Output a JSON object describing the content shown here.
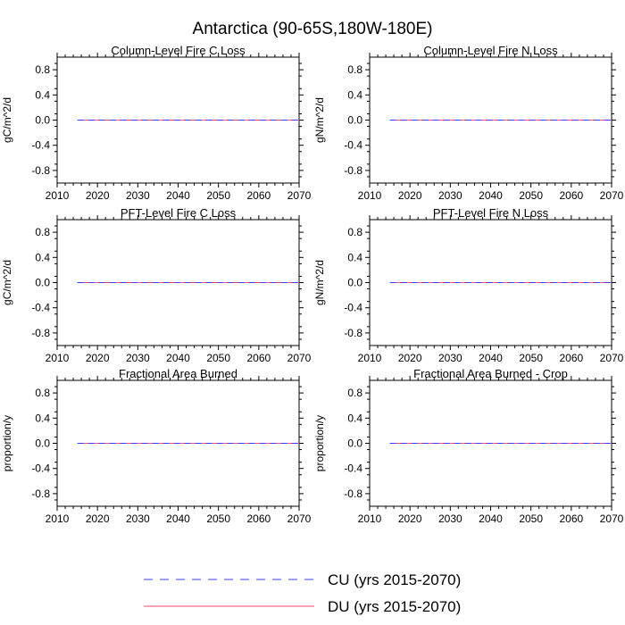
{
  "figure": {
    "title": "Antarctica (90-65S,180W-180E)"
  },
  "legend": {
    "entries": [
      {
        "label": "CU (yrs 2015-2070)",
        "color": "#3a3aff",
        "style": "dashed"
      },
      {
        "label": "DU (yrs 2015-2070)",
        "color": "#ff4a6a",
        "style": "solid"
      }
    ]
  },
  "chart_data": [
    {
      "type": "line",
      "title": "Column-Level Fire C Loss",
      "ylabel": "gC/m^2/d",
      "xlim": [
        2010,
        2070
      ],
      "ylim": [
        -1.0,
        1.0
      ],
      "xticks": [
        2010,
        2020,
        2030,
        2040,
        2050,
        2060,
        2070
      ],
      "yticks": [
        -0.8,
        -0.4,
        0.0,
        0.4,
        0.8
      ],
      "ytick_labels": [
        "-0.8",
        "-0.4",
        "0.0",
        "0.4",
        "0.8"
      ],
      "series": [
        {
          "name": "CU (yrs 2015-2070)",
          "x": [
            2015,
            2070
          ],
          "y": [
            0.0,
            0.0
          ]
        },
        {
          "name": "DU (yrs 2015-2070)",
          "x": [
            2015,
            2070
          ],
          "y": [
            0.0,
            0.0
          ]
        }
      ]
    },
    {
      "type": "line",
      "title": "Column-Level Fire N Loss",
      "ylabel": "gN/m^2/d",
      "xlim": [
        2010,
        2070
      ],
      "ylim": [
        -1.0,
        1.0
      ],
      "xticks": [
        2010,
        2020,
        2030,
        2040,
        2050,
        2060,
        2070
      ],
      "yticks": [
        -0.8,
        -0.4,
        0.0,
        0.4,
        0.8
      ],
      "ytick_labels": [
        "-0.8",
        "-0.4",
        "0.0",
        "0.4",
        "0.8"
      ],
      "series": [
        {
          "name": "CU (yrs 2015-2070)",
          "x": [
            2015,
            2070
          ],
          "y": [
            0.0,
            0.0
          ]
        },
        {
          "name": "DU (yrs 2015-2070)",
          "x": [
            2015,
            2070
          ],
          "y": [
            0.0,
            0.0
          ]
        }
      ]
    },
    {
      "type": "line",
      "title": "PFT-Level Fire C Loss",
      "ylabel": "gC/m^2/d",
      "xlim": [
        2010,
        2070
      ],
      "ylim": [
        -1.0,
        1.0
      ],
      "xticks": [
        2010,
        2020,
        2030,
        2040,
        2050,
        2060,
        2070
      ],
      "yticks": [
        -0.8,
        -0.4,
        0.0,
        0.4,
        0.8
      ],
      "ytick_labels": [
        "-0.8",
        "-0.4",
        "0.0",
        "0.4",
        "0.8"
      ],
      "series": [
        {
          "name": "CU (yrs 2015-2070)",
          "x": [
            2015,
            2070
          ],
          "y": [
            0.0,
            0.0
          ]
        },
        {
          "name": "DU (yrs 2015-2070)",
          "x": [
            2015,
            2070
          ],
          "y": [
            0.0,
            0.0
          ]
        }
      ]
    },
    {
      "type": "line",
      "title": "PFT-Level Fire N Loss",
      "ylabel": "gN/m^2/d",
      "xlim": [
        2010,
        2070
      ],
      "ylim": [
        -1.0,
        1.0
      ],
      "xticks": [
        2010,
        2020,
        2030,
        2040,
        2050,
        2060,
        2070
      ],
      "yticks": [
        -0.8,
        -0.4,
        0.0,
        0.4,
        0.8
      ],
      "ytick_labels": [
        "-0.8",
        "-0.4",
        "0.0",
        "0.4",
        "0.8"
      ],
      "series": [
        {
          "name": "CU (yrs 2015-2070)",
          "x": [
            2015,
            2070
          ],
          "y": [
            0.0,
            0.0
          ]
        },
        {
          "name": "DU (yrs 2015-2070)",
          "x": [
            2015,
            2070
          ],
          "y": [
            0.0,
            0.0
          ]
        }
      ]
    },
    {
      "type": "line",
      "title": "Fractional Area Burned",
      "ylabel": "proportion/y",
      "xlim": [
        2010,
        2070
      ],
      "ylim": [
        -1.0,
        1.0
      ],
      "xticks": [
        2010,
        2020,
        2030,
        2040,
        2050,
        2060,
        2070
      ],
      "yticks": [
        -0.8,
        -0.4,
        0.0,
        0.4,
        0.8
      ],
      "ytick_labels": [
        "-0.8",
        "-0.4",
        "0.0",
        "0.4",
        "0.8"
      ],
      "series": [
        {
          "name": "CU (yrs 2015-2070)",
          "x": [
            2015,
            2070
          ],
          "y": [
            0.0,
            0.0
          ]
        },
        {
          "name": "DU (yrs 2015-2070)",
          "x": [
            2015,
            2070
          ],
          "y": [
            0.0,
            0.0
          ]
        }
      ]
    },
    {
      "type": "line",
      "title": "Fractional Area Burned - Crop",
      "ylabel": "proportion/y",
      "xlim": [
        2010,
        2070
      ],
      "ylim": [
        -1.0,
        1.0
      ],
      "xticks": [
        2010,
        2020,
        2030,
        2040,
        2050,
        2060,
        2070
      ],
      "yticks": [
        -0.8,
        -0.4,
        0.0,
        0.4,
        0.8
      ],
      "ytick_labels": [
        "-0.8",
        "-0.4",
        "0.0",
        "0.4",
        "0.8"
      ],
      "series": [
        {
          "name": "CU (yrs 2015-2070)",
          "x": [
            2015,
            2070
          ],
          "y": [
            0.0,
            0.0
          ]
        },
        {
          "name": "DU (yrs 2015-2070)",
          "x": [
            2015,
            2070
          ],
          "y": [
            0.0,
            0.0
          ]
        }
      ]
    }
  ]
}
